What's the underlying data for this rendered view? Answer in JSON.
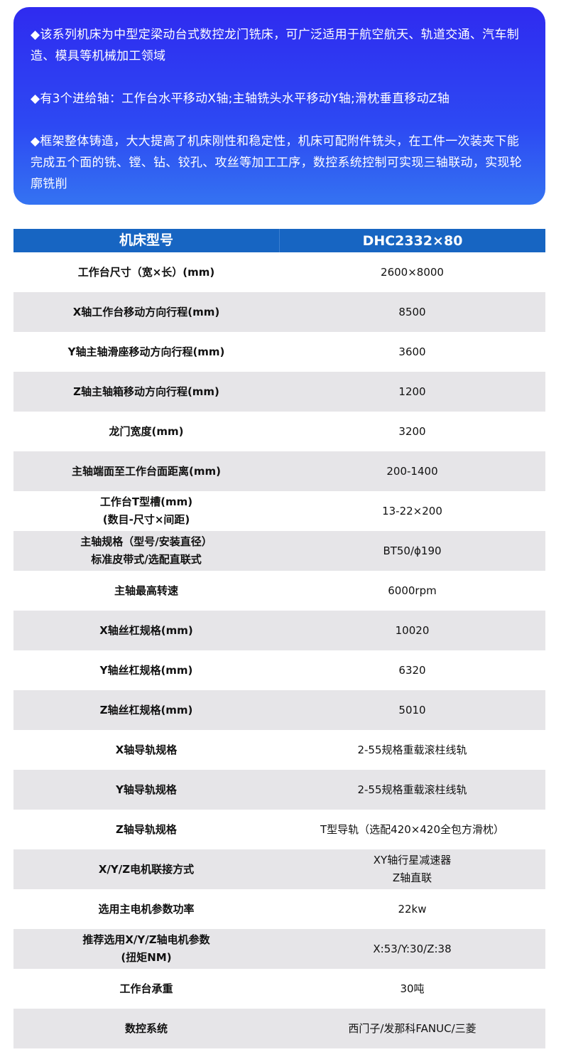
{
  "intro": [
    "◆该系列机床为中型定梁动台式数控龙门铣床，可广泛适用于航空航天、轨道交通、汽车制造、模具等机械加工领域",
    "◆有3个进给轴：工作台水平移动X轴;主轴铣头水平移动Y轴;滑枕垂直移动Z轴",
    "◆框架整体铸造，大大提高了机床刚性和稳定性，机床可配附件铣头，在工件一次装夹下能完成五个面的铣、镗、钻、铰孔、攻丝等加工工序，数控系统控制可实现三轴联动，实现轮廓铣削"
  ],
  "table": {
    "header": {
      "key": "机床型号",
      "value": "DHC2332×80"
    },
    "rows": [
      {
        "key": "工作台尺寸（宽×长）(mm)",
        "value": "2600×8000"
      },
      {
        "key": "X轴工作台移动方向行程(mm)",
        "value": "8500"
      },
      {
        "key": "Y轴主轴滑座移动方向行程(mm)",
        "value": "3600"
      },
      {
        "key": "Z轴主轴箱移动方向行程(mm)",
        "value": "1200"
      },
      {
        "key": "龙门宽度(mm)",
        "value": "3200"
      },
      {
        "key": "主轴端面至工作台面距离(mm)",
        "value": "200-1400"
      },
      {
        "key": "工作台T型槽(mm)\n(数目-尺寸×间距)",
        "value": "13-22×200"
      },
      {
        "key": "主轴规格（型号/安装直径）\n标准皮带式/选配直联式",
        "value": "BT50/ϕ190"
      },
      {
        "key": "主轴最高转速",
        "value": "6000rpm"
      },
      {
        "key": "X轴丝杠规格(mm)",
        "value": "10020"
      },
      {
        "key": "Y轴丝杠规格(mm)",
        "value": "6320"
      },
      {
        "key": "Z轴丝杠规格(mm)",
        "value": "5010"
      },
      {
        "key": "X轴导轨规格",
        "value": "2-55规格重载滚柱线轨"
      },
      {
        "key": "Y轴导轨规格",
        "value": "2-55规格重载滚柱线轨"
      },
      {
        "key": "Z轴导轨规格",
        "value": "T型导轨（选配420×420全包方滑枕）"
      },
      {
        "key": "X/Y/Z电机联接方式",
        "value": "XY轴行星减速器\nZ轴直联"
      },
      {
        "key": "选用主电机参数功率",
        "value": "22kw"
      },
      {
        "key": "推荐选用X/Y/Z轴电机参数\n(扭矩NM)",
        "value": "X:53/Y:30/Z:38"
      },
      {
        "key": "工作台承重",
        "value": "30吨"
      },
      {
        "key": "数控系统",
        "value": "西门子/发那科FANUC/三菱"
      }
    ]
  }
}
